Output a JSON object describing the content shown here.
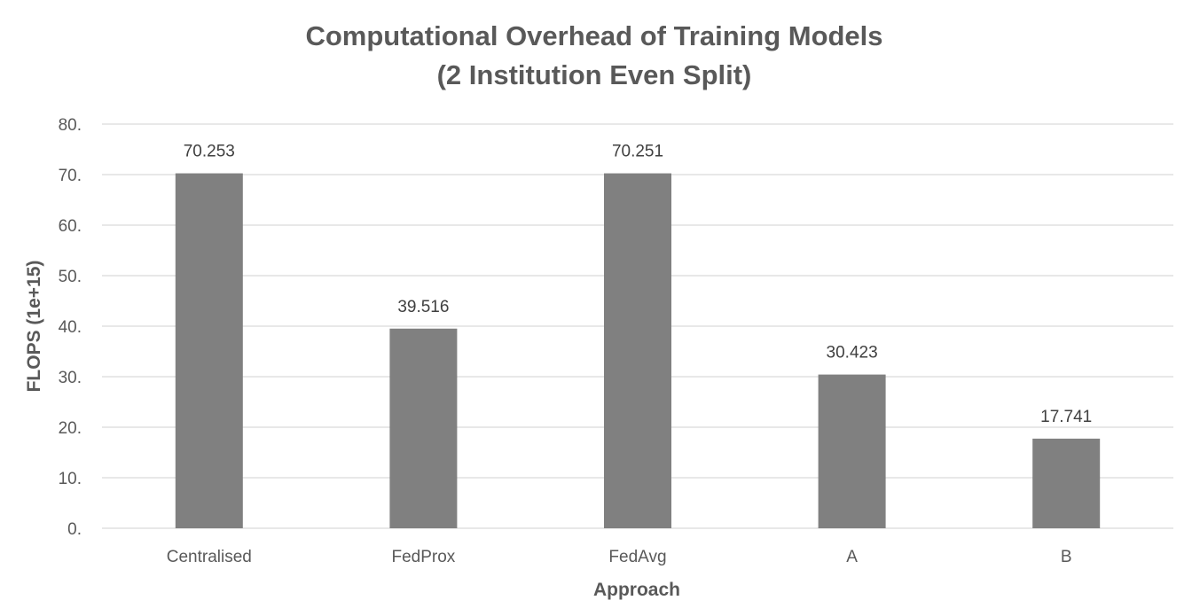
{
  "chart_data": {
    "type": "bar",
    "title": "Computational Overhead of Training Models",
    "subtitle": "(2 Institution Even Split)",
    "xlabel": "Approach",
    "ylabel": "FLOPS (1e+15)",
    "categories": [
      "Centralised",
      "FedProx",
      "FedAvg",
      "A",
      "B"
    ],
    "values": [
      70.253,
      39.516,
      70.251,
      30.423,
      17.741
    ],
    "data_labels": [
      "70.253",
      "39.516",
      "70.251",
      "30.423",
      "17.741"
    ],
    "yticks": [
      0,
      10,
      20,
      30,
      40,
      50,
      60,
      70,
      80
    ],
    "ytick_labels": [
      "0.",
      "10.",
      "20.",
      "30.",
      "40.",
      "50.",
      "60.",
      "70.",
      "80."
    ],
    "ylim": [
      0,
      80
    ],
    "grid": true,
    "legend": "none",
    "bar_color": "#808080",
    "grid_color": "#d9d9d9",
    "text_color": "#595959"
  }
}
